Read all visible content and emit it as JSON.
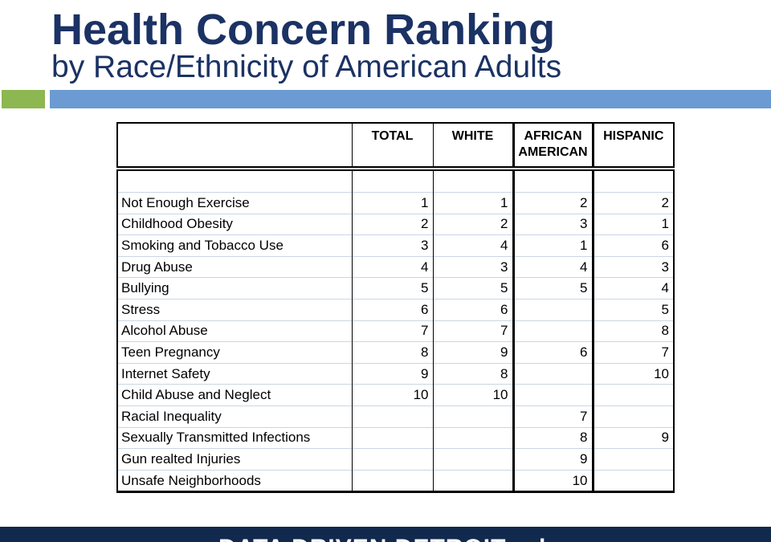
{
  "slide": {
    "title": "Health Concern Ranking",
    "subtitle": "by Race/Ethnicity of American Adults"
  },
  "colors": {
    "title_navy": "#1B3264",
    "accent_green": "#8DB750",
    "accent_blue": "#6B9BD2",
    "footer_navy": "#12294E",
    "table_border": "#000000",
    "row_separator": "#C9D6E4"
  },
  "table": {
    "header": {
      "label": "",
      "total": "TOTAL",
      "white": "WHITE",
      "african_line1": "AFRICAN",
      "african_line2": "AMERICAN",
      "hispanic": "HISPANIC"
    },
    "rows": [
      {
        "label": "Not Enough Exercise",
        "total": "1",
        "white": "1",
        "african_american": "2",
        "hispanic": "2"
      },
      {
        "label": "Childhood Obesity",
        "total": "2",
        "white": "2",
        "african_american": "3",
        "hispanic": "1"
      },
      {
        "label": "Smoking and Tobacco Use",
        "total": "3",
        "white": "4",
        "african_american": "1",
        "hispanic": "6"
      },
      {
        "label": "Drug Abuse",
        "total": "4",
        "white": "3",
        "african_american": "4",
        "hispanic": "3"
      },
      {
        "label": "Bullying",
        "total": "5",
        "white": "5",
        "african_american": "5",
        "hispanic": "4"
      },
      {
        "label": "Stress",
        "total": "6",
        "white": "6",
        "african_american": "",
        "hispanic": "5"
      },
      {
        "label": "Alcohol Abuse",
        "total": "7",
        "white": "7",
        "african_american": "",
        "hispanic": "8"
      },
      {
        "label": "Teen Pregnancy",
        "total": "8",
        "white": "9",
        "african_american": "6",
        "hispanic": "7"
      },
      {
        "label": "Internet Safety",
        "total": "9",
        "white": "8",
        "african_american": "",
        "hispanic": "10"
      },
      {
        "label": "Child Abuse and Neglect",
        "total": "10",
        "white": "10",
        "african_american": "",
        "hispanic": ""
      },
      {
        "label": "Racial Inequality",
        "total": "",
        "white": "",
        "african_american": "7",
        "hispanic": ""
      },
      {
        "label": "Sexually Transmitted Infections",
        "total": "",
        "white": "",
        "african_american": "8",
        "hispanic": "9"
      },
      {
        "label": "Gun realted Injuries",
        "total": "",
        "white": "",
        "african_american": "9",
        "hispanic": ""
      },
      {
        "label": "Unsafe Neighborhoods",
        "total": "",
        "white": "",
        "african_american": "10",
        "hispanic": ""
      }
    ]
  },
  "footer": {
    "text": "DATA DRIVEN DETROIT",
    "mark": "d"
  }
}
